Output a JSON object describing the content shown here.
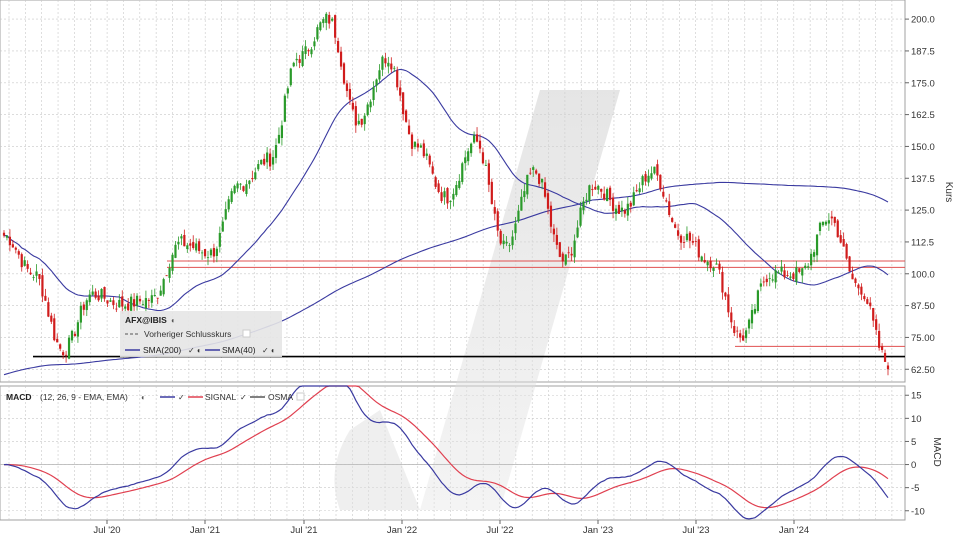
{
  "chart_data": [
    {
      "type": "candlestick",
      "title": "AFX@IBIS",
      "ylabel": "Kurs",
      "ylim": [
        57.5,
        207.5
      ],
      "y_ticks": [
        "200.0",
        "187.5",
        "175.0",
        "162.5",
        "150.0",
        "137.5",
        "125.0",
        "112.5",
        "100.0",
        "87.50",
        "75.00",
        "62.50"
      ],
      "x_ticks": [
        "Jul '20",
        "Jan '21",
        "Jul '21",
        "Jan '22",
        "Jul '22",
        "Jan '23",
        "Jul '23",
        "Jan '24"
      ],
      "legend": {
        "symbol": "AFX@IBIS",
        "prev_close_label": "Vorheriger Schlusskurs",
        "sma200_label": "SMA(200)",
        "sma40_label": "SMA(40)"
      },
      "anchor_points": [
        {
          "date": "2020-01",
          "close": 115
        },
        {
          "date": "2020-03",
          "close": 100
        },
        {
          "date": "2020-03b",
          "close": 70
        },
        {
          "date": "2020-05",
          "close": 92
        },
        {
          "date": "2020-07",
          "close": 88
        },
        {
          "date": "2020-09",
          "close": 90
        },
        {
          "date": "2020-11",
          "close": 112
        },
        {
          "date": "2021-01",
          "close": 108
        },
        {
          "date": "2021-03",
          "close": 135
        },
        {
          "date": "2021-05",
          "close": 145
        },
        {
          "date": "2021-07",
          "close": 185
        },
        {
          "date": "2021-09",
          "close": 200
        },
        {
          "date": "2021-10",
          "close": 160
        },
        {
          "date": "2021-12",
          "close": 185
        },
        {
          "date": "2022-01",
          "close": 150
        },
        {
          "date": "2022-03",
          "close": 130
        },
        {
          "date": "2022-04",
          "close": 152
        },
        {
          "date": "2022-06",
          "close": 110
        },
        {
          "date": "2022-08",
          "close": 140
        },
        {
          "date": "2022-10",
          "close": 105
        },
        {
          "date": "2022-12",
          "close": 135
        },
        {
          "date": "2023-02",
          "close": 125
        },
        {
          "date": "2023-04",
          "close": 140
        },
        {
          "date": "2023-06",
          "close": 115
        },
        {
          "date": "2023-08",
          "close": 105
        },
        {
          "date": "2023-10",
          "close": 75
        },
        {
          "date": "2023-12",
          "close": 100
        },
        {
          "date": "2024-02",
          "close": 100
        },
        {
          "date": "2024-04",
          "close": 122
        },
        {
          "date": "2024-06",
          "close": 95
        },
        {
          "date": "2024-07",
          "close": 65
        }
      ],
      "reference_lines": [
        {
          "label": "resistance-upper",
          "value": 105,
          "color": "#e05050"
        },
        {
          "label": "resistance-lower",
          "value": 102.5,
          "color": "#e05050"
        },
        {
          "label": "prev-close",
          "value": 71.5,
          "color": "#e05050"
        },
        {
          "label": "support",
          "value": 67.5,
          "color": "#000000"
        }
      ],
      "colors": {
        "up": "#2a9a2a",
        "down": "#d01c1c",
        "sma": "#3a3aa0",
        "grid": "#c8c8c8"
      }
    },
    {
      "type": "line",
      "title": "MACD",
      "params": "(12, 26, 9 - EMA, EMA)",
      "ylabel": "MACD",
      "ylim": [
        -12,
        17
      ],
      "y_ticks": [
        "15",
        "10",
        "5",
        "0",
        "-5",
        "-10"
      ],
      "series": [
        {
          "name": "MACD",
          "color": "#3a3aa0"
        },
        {
          "name": "SIGNAL",
          "color": "#e04050"
        },
        {
          "name": "OSMA",
          "color": "#555555"
        }
      ]
    }
  ]
}
